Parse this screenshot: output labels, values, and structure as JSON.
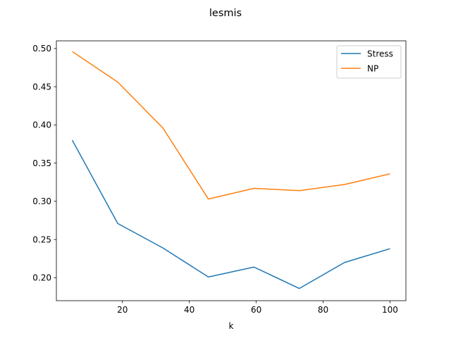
{
  "chart_data": {
    "type": "line",
    "title": "lesmis",
    "xlabel": "k",
    "ylabel": "",
    "xlim": [
      0.25,
      104.75
    ],
    "ylim": [
      0.17,
      0.51
    ],
    "xticks": [
      20,
      40,
      60,
      80,
      100
    ],
    "yticks": [
      0.2,
      0.25,
      0.3,
      0.35,
      0.4,
      0.45,
      0.5
    ],
    "xtick_labels": [
      "20",
      "40",
      "60",
      "80",
      "100"
    ],
    "ytick_labels": [
      "0.20",
      "0.25",
      "0.30",
      "0.35",
      "0.40",
      "0.45",
      "0.50"
    ],
    "grid": false,
    "legend_position": "top-right",
    "x": [
      5,
      18.6,
      32.1,
      45.7,
      59.3,
      72.9,
      86.4,
      100
    ],
    "series": [
      {
        "name": "Stress",
        "color": "#1f77b4",
        "values": [
          0.38,
          0.271,
          0.239,
          0.201,
          0.214,
          0.186,
          0.22,
          0.238
        ]
      },
      {
        "name": "NP",
        "color": "#ff7f0e",
        "values": [
          0.496,
          0.456,
          0.396,
          0.303,
          0.317,
          0.314,
          0.322,
          0.336
        ]
      }
    ]
  }
}
